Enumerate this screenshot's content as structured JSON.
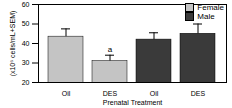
{
  "chart_data": {
    "type": "bar",
    "categories": [
      "Oil",
      "DES",
      "Oil",
      "DES"
    ],
    "x_label": "Prenatal Treatment",
    "y_label": "(x10⁶ cells/mL+SEM)",
    "series": [
      {
        "name": "Female",
        "color": "#c4c4c4",
        "values": [
          43.5,
          31,
          null,
          null
        ],
        "errors": [
          4,
          3,
          null,
          null
        ]
      },
      {
        "name": "Male",
        "color": "#3a3a3a",
        "values": [
          null,
          null,
          42,
          45
        ],
        "errors": [
          null,
          null,
          3.5,
          5
        ]
      }
    ],
    "annotations": [
      {
        "text": "a",
        "series": "Female",
        "index": 1
      }
    ],
    "ylim": [
      20,
      60
    ],
    "yticks": [
      20,
      30,
      40,
      50,
      60
    ],
    "legend": "top-right"
  }
}
